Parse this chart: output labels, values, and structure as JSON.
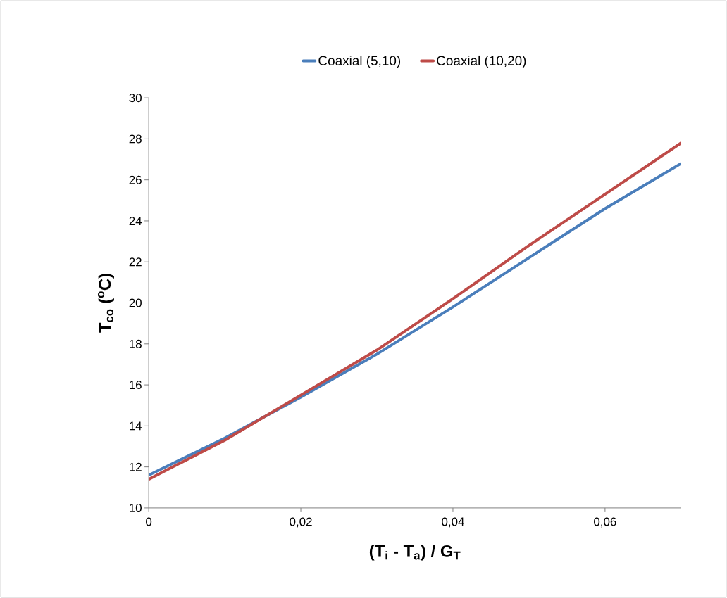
{
  "chart_data": {
    "type": "line",
    "xlabel": "**(T$_{i}$ - T$_{a}$) / G$_{T}$**",
    "ylabel": "**T$_{co}$ ($^{o}$C)**",
    "x": [
      0,
      0.01,
      0.02,
      0.03,
      0.04,
      0.05,
      0.06,
      0.07
    ],
    "series": [
      {
        "name": "Coaxial (5,10)",
        "color": "#4a7ebb",
        "values": [
          11.6,
          13.4,
          15.4,
          17.5,
          19.8,
          22.2,
          24.6,
          26.8
        ]
      },
      {
        "name": "Coaxial (10,20)",
        "color": "#be4b48",
        "values": [
          11.4,
          13.3,
          15.5,
          17.7,
          20.2,
          22.8,
          25.3,
          27.8
        ]
      }
    ],
    "xlim": [
      0,
      0.07
    ],
    "xticks": [
      0,
      {
        "value": 0.02,
        "label": "0,02"
      },
      {
        "value": 0.04,
        "label": "0,04"
      },
      {
        "value": 0.06,
        "label": "0,06"
      }
    ],
    "ylim": [
      10,
      30
    ],
    "yticks": [
      10,
      12,
      14,
      16,
      18,
      20,
      22,
      24,
      26,
      28,
      30
    ],
    "grid": false,
    "legend": "top",
    "marker": "none",
    "line_style": "solid"
  }
}
